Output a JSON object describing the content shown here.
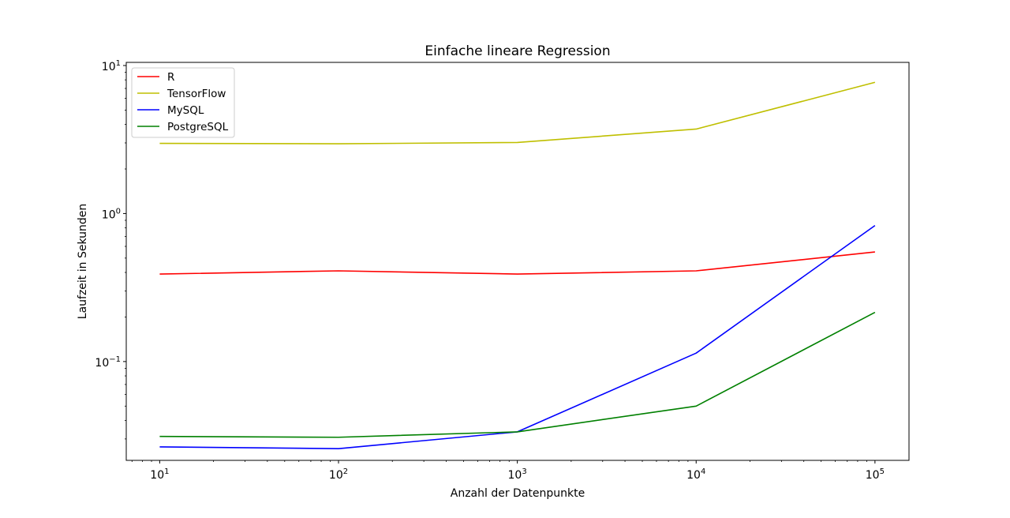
{
  "chart_data": {
    "type": "line",
    "title": "Einfache lineare Regression",
    "xlabel": "Anzahl der Datenpunkte",
    "ylabel": "Laufzeit in Sekunden",
    "xscale": "log",
    "yscale": "log",
    "xlim": [
      6.5,
      155000
    ],
    "ylim": [
      0.0215,
      10.5
    ],
    "x": [
      10,
      100,
      1000,
      10000,
      100000
    ],
    "x_ticks": [
      {
        "value": 10,
        "base": "10",
        "exp": "1"
      },
      {
        "value": 100,
        "base": "10",
        "exp": "2"
      },
      {
        "value": 1000,
        "base": "10",
        "exp": "3"
      },
      {
        "value": 10000,
        "base": "10",
        "exp": "4"
      },
      {
        "value": 100000,
        "base": "10",
        "exp": "5"
      }
    ],
    "y_ticks": [
      {
        "value": 0.1,
        "base": "10",
        "exp": "−1"
      },
      {
        "value": 1,
        "base": "10",
        "exp": "0"
      },
      {
        "value": 10,
        "base": "10",
        "exp": "1"
      }
    ],
    "grid": false,
    "legend_position": "top-left",
    "series": [
      {
        "name": "R",
        "color": "#ff0000",
        "values": [
          0.39,
          0.41,
          0.39,
          0.41,
          0.55
        ]
      },
      {
        "name": "TensorFlow",
        "color": "#bfbf00",
        "values": [
          2.98,
          2.96,
          3.02,
          3.72,
          7.7
        ]
      },
      {
        "name": "MySQL",
        "color": "#0000ff",
        "values": [
          0.0265,
          0.0258,
          0.0335,
          0.114,
          0.83
        ]
      },
      {
        "name": "PostgreSQL",
        "color": "#008000",
        "values": [
          0.0312,
          0.0308,
          0.0335,
          0.05,
          0.215
        ]
      }
    ]
  }
}
